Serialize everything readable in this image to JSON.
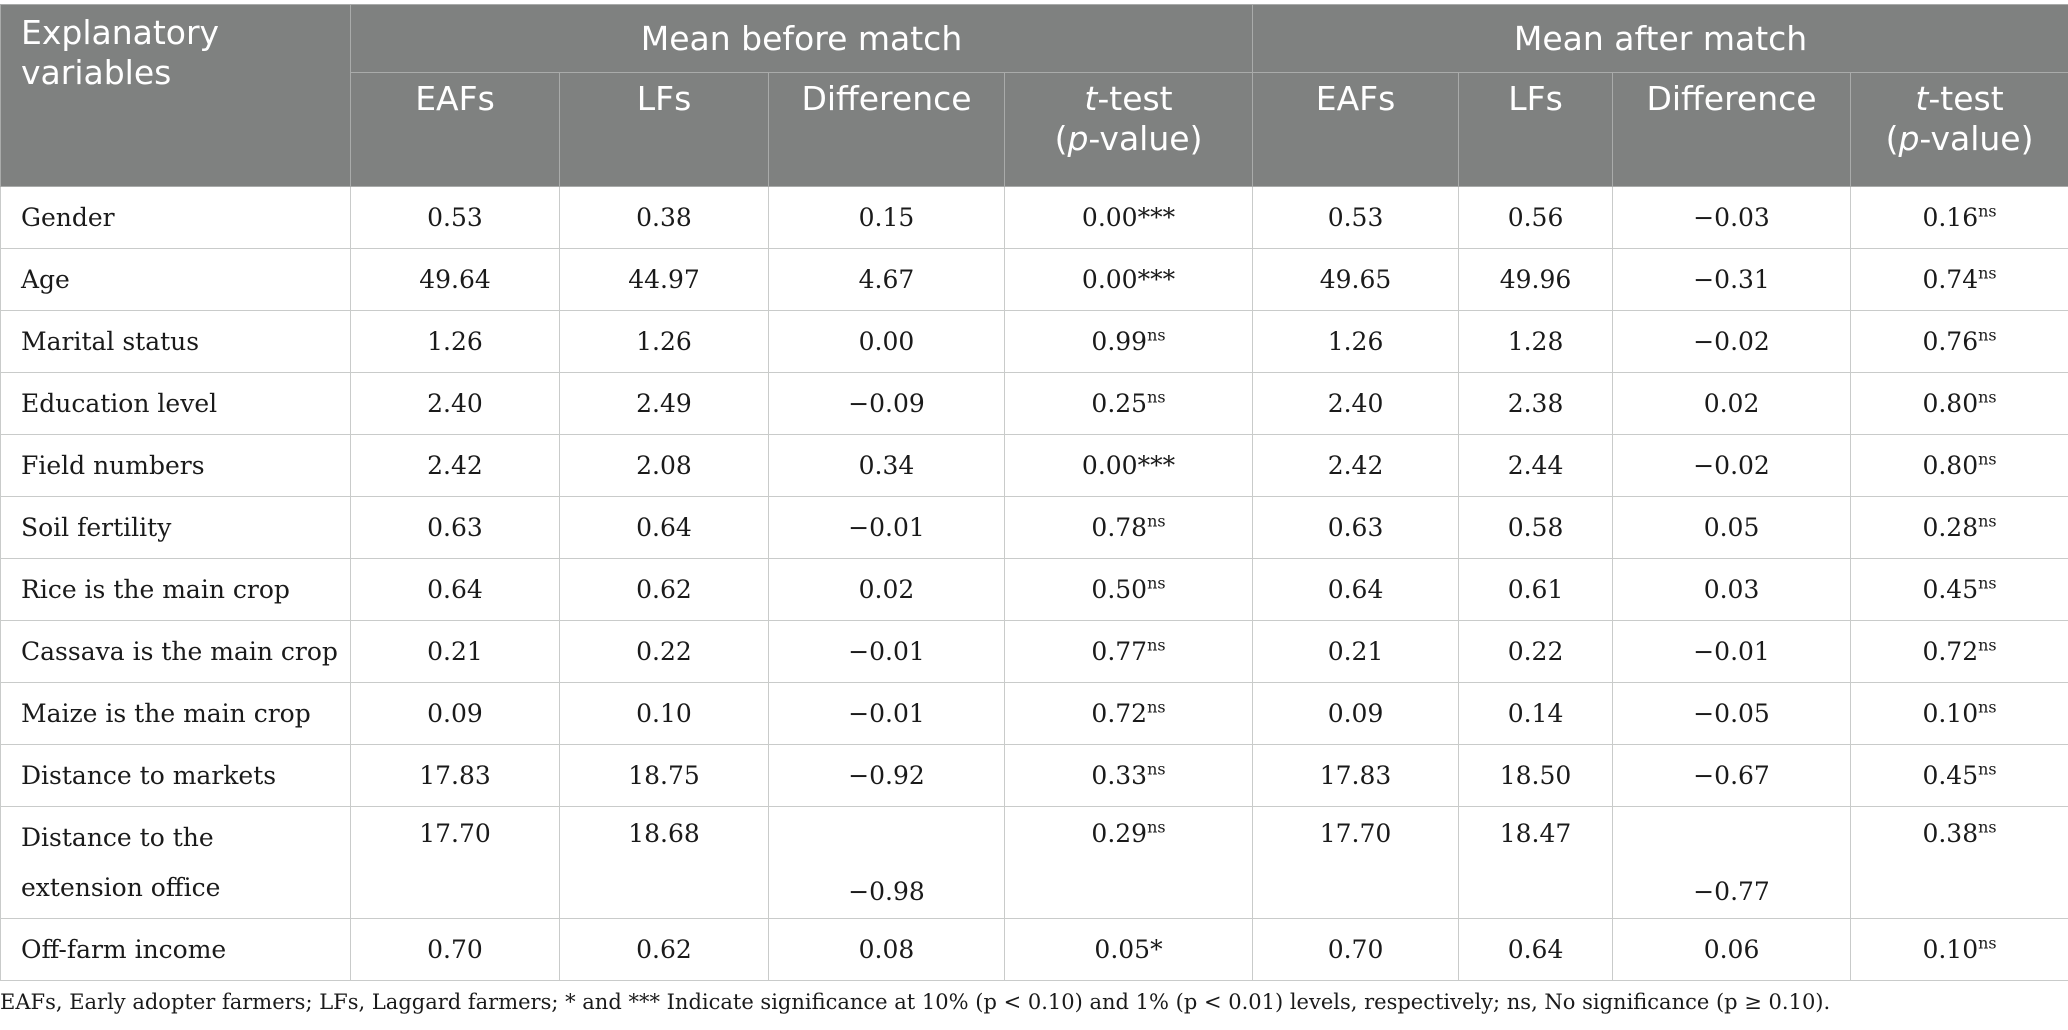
{
  "header": {
    "variables_label": "Explanatory variables",
    "group_before": "Mean before match",
    "group_after": "Mean after match",
    "col_eafs": "EAFs",
    "col_lfs": "LFs",
    "col_difference": "Difference",
    "col_ttest_t": "t",
    "col_ttest_rest": "-test",
    "col_ttest_open": "(",
    "col_ttest_p": "p",
    "col_ttest_close": "-value)"
  },
  "rows": [
    {
      "name": "Gender",
      "b_eafs": "0.53",
      "b_lfs": "0.38",
      "b_diff": "0.15",
      "b_t": "0.00***",
      "b_sig": "",
      "a_eafs": "0.53",
      "a_lfs": "0.56",
      "a_diff": "−0.03",
      "a_t": "0.16",
      "a_sig": "ns"
    },
    {
      "name": "Age",
      "b_eafs": "49.64",
      "b_lfs": "44.97",
      "b_diff": "4.67",
      "b_t": "0.00***",
      "b_sig": "",
      "a_eafs": "49.65",
      "a_lfs": "49.96",
      "a_diff": "−0.31",
      "a_t": "0.74",
      "a_sig": "ns"
    },
    {
      "name": "Marital status",
      "b_eafs": "1.26",
      "b_lfs": "1.26",
      "b_diff": "0.00",
      "b_t": "0.99",
      "b_sig": "ns",
      "a_eafs": "1.26",
      "a_lfs": "1.28",
      "a_diff": "−0.02",
      "a_t": "0.76",
      "a_sig": "ns"
    },
    {
      "name": "Education level",
      "b_eafs": "2.40",
      "b_lfs": "2.49",
      "b_diff": "−0.09",
      "b_t": "0.25",
      "b_sig": "ns",
      "a_eafs": "2.40",
      "a_lfs": "2.38",
      "a_diff": "0.02",
      "a_t": "0.80",
      "a_sig": "ns"
    },
    {
      "name": "Field numbers",
      "b_eafs": "2.42",
      "b_lfs": "2.08",
      "b_diff": "0.34",
      "b_t": "0.00***",
      "b_sig": "",
      "a_eafs": "2.42",
      "a_lfs": "2.44",
      "a_diff": "−0.02",
      "a_t": "0.80",
      "a_sig": "ns"
    },
    {
      "name": "Soil fertility",
      "b_eafs": "0.63",
      "b_lfs": "0.64",
      "b_diff": "−0.01",
      "b_t": "0.78",
      "b_sig": "ns",
      "a_eafs": "0.63",
      "a_lfs": "0.58",
      "a_diff": "0.05",
      "a_t": "0.28",
      "a_sig": "ns"
    },
    {
      "name": "Rice is the main crop",
      "b_eafs": "0.64",
      "b_lfs": "0.62",
      "b_diff": "0.02",
      "b_t": "0.50",
      "b_sig": "ns",
      "a_eafs": "0.64",
      "a_lfs": "0.61",
      "a_diff": "0.03",
      "a_t": "0.45",
      "a_sig": "ns"
    },
    {
      "name": "Cassava is the main crop",
      "b_eafs": "0.21",
      "b_lfs": "0.22",
      "b_diff": "−0.01",
      "b_t": "0.77",
      "b_sig": "ns",
      "a_eafs": "0.21",
      "a_lfs": "0.22",
      "a_diff": "−0.01",
      "a_t": "0.72",
      "a_sig": "ns"
    },
    {
      "name": "Maize is the main crop",
      "b_eafs": "0.09",
      "b_lfs": "0.10",
      "b_diff": "−0.01",
      "b_t": "0.72",
      "b_sig": "ns",
      "a_eafs": "0.09",
      "a_lfs": "0.14",
      "a_diff": "−0.05",
      "a_t": "0.10",
      "a_sig": "ns"
    },
    {
      "name": "Distance to markets",
      "b_eafs": "17.83",
      "b_lfs": "18.75",
      "b_diff": "−0.92",
      "b_t": "0.33",
      "b_sig": "ns",
      "a_eafs": "17.83",
      "a_lfs": "18.50",
      "a_diff": "−0.67",
      "a_t": "0.45",
      "a_sig": "ns"
    },
    {
      "name": "Distance to the extension office",
      "b_eafs": "17.70",
      "b_lfs": "18.68",
      "b_diff": "−0.98",
      "b_t": "0.29",
      "b_sig": "ns",
      "a_eafs": "17.70",
      "a_lfs": "18.47",
      "a_diff": "−0.77",
      "a_t": "0.38",
      "a_sig": "ns"
    },
    {
      "name": "Off-farm income",
      "b_eafs": "0.70",
      "b_lfs": "0.62",
      "b_diff": "0.08",
      "b_t": "0.05*",
      "b_sig": "",
      "a_eafs": "0.70",
      "a_lfs": "0.64",
      "a_diff": "0.06",
      "a_t": "0.10",
      "a_sig": "ns"
    }
  ],
  "footnote": "EAFs, Early adopter farmers; LFs, Laggard farmers; * and *** Indicate significance at 10% (p < 0.10) and 1% (p < 0.01) levels, respectively; ns, No significance (p ≥ 0.10)."
}
